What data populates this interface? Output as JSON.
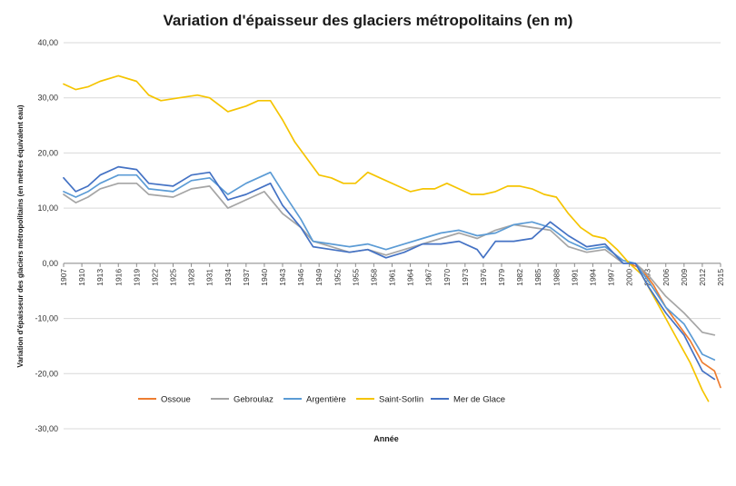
{
  "chart_data": {
    "type": "line",
    "title": "Variation d'épaisseur des glaciers métropolitains (en m)",
    "xlabel": "Année",
    "ylabel": "Variation d'épaisseur des glaciers métropolitains (en mètres équivalent eau)",
    "ylim": [
      -30,
      40
    ],
    "y_ticks": [
      40,
      30,
      20,
      10,
      0,
      -10,
      -20,
      -30
    ],
    "y_tick_labels": [
      "40,00",
      "30,00",
      "20,00",
      "10,00",
      "0,00",
      "-10,00",
      "-20,00",
      "-30,00"
    ],
    "x_range": [
      1907,
      2015
    ],
    "x_ticks": [
      1907,
      1910,
      1913,
      1916,
      1919,
      1922,
      1925,
      1928,
      1931,
      1934,
      1937,
      1940,
      1943,
      1946,
      1949,
      1952,
      1955,
      1958,
      1961,
      1964,
      1967,
      1970,
      1973,
      1976,
      1979,
      1982,
      1985,
      1988,
      1991,
      1994,
      1997,
      2000,
      2003,
      2006,
      2009,
      2012,
      2015
    ],
    "grid": true,
    "legend_position": "bottom-left",
    "series": [
      {
        "name": "Ossoue",
        "color": "#ED7D31",
        "x": [
          2000,
          2002,
          2004,
          2006,
          2008,
          2010,
          2012,
          2014,
          2015
        ],
        "y": [
          0,
          -1,
          -4,
          -8,
          -11,
          -14,
          -18,
          -19.5,
          -22.5
        ]
      },
      {
        "name": "Gebroulaz",
        "color": "#A5A5A5",
        "x": [
          1907,
          1909,
          1911,
          1913,
          1916,
          1919,
          1921,
          1925,
          1928,
          1931,
          1934,
          1937,
          1940,
          1943,
          1946,
          1948,
          1951,
          1954,
          1957,
          1960,
          1963,
          1966,
          1969,
          1972,
          1975,
          1978,
          1981,
          1984,
          1987,
          1990,
          1993,
          1996,
          1999,
          2001,
          2003,
          2006,
          2009,
          2012,
          2014
        ],
        "y": [
          12.5,
          11,
          12,
          13.5,
          14.5,
          14.5,
          12.5,
          12,
          13.5,
          14,
          10,
          11.5,
          13,
          9,
          6.5,
          4,
          3,
          2,
          2.5,
          1.5,
          2.5,
          3.5,
          4.5,
          5.5,
          4.5,
          6,
          7,
          6.5,
          6,
          3,
          2,
          2.5,
          0,
          0,
          -2,
          -6,
          -9,
          -12.5,
          -13
        ]
      },
      {
        "name": "Argentière",
        "color": "#5B9BD5",
        "x": [
          1907,
          1909,
          1911,
          1913,
          1916,
          1919,
          1921,
          1925,
          1928,
          1931,
          1934,
          1937,
          1941,
          1943,
          1946,
          1948,
          1951,
          1954,
          1957,
          1960,
          1963,
          1966,
          1969,
          1972,
          1975,
          1978,
          1981,
          1984,
          1987,
          1990,
          1993,
          1996,
          1999,
          2001,
          2003,
          2006,
          2009,
          2012,
          2014
        ],
        "y": [
          13,
          12,
          13,
          14.5,
          16,
          16,
          13.5,
          13,
          15,
          15.5,
          12.5,
          14.5,
          16.5,
          13,
          8,
          4,
          3.5,
          3,
          3.5,
          2.5,
          3.5,
          4.5,
          5.5,
          6,
          5,
          5.5,
          7,
          7.5,
          6.5,
          4,
          2.5,
          3,
          0.5,
          0,
          -3,
          -8,
          -11,
          -16.5,
          -17.5
        ]
      },
      {
        "name": "Saint-Sorlin",
        "color": "#F5C400",
        "x": [
          1907,
          1909,
          1911,
          1913,
          1916,
          1919,
          1921,
          1923,
          1926,
          1929,
          1931,
          1934,
          1937,
          1939,
          1941,
          1943,
          1945,
          1947,
          1949,
          1951,
          1953,
          1955,
          1957,
          1959,
          1962,
          1964,
          1966,
          1968,
          1970,
          1972,
          1974,
          1976,
          1978,
          1980,
          1982,
          1984,
          1986,
          1988,
          1990,
          1992,
          1994,
          1996,
          1998,
          2000,
          2002,
          2004,
          2006,
          2008,
          2010,
          2012,
          2013
        ],
        "y": [
          32.5,
          31.5,
          32,
          33,
          34,
          33,
          30.5,
          29.5,
          30,
          30.5,
          30,
          27.5,
          28.5,
          29.5,
          29.5,
          26,
          22,
          19,
          16,
          15.5,
          14.5,
          14.5,
          16.5,
          15.5,
          14,
          13,
          13.5,
          13.5,
          14.5,
          13.5,
          12.5,
          12.5,
          13,
          14,
          14,
          13.5,
          12.5,
          12,
          9,
          6.5,
          5,
          4.5,
          2.5,
          0,
          -2,
          -6,
          -10,
          -14,
          -18,
          -23,
          -25
        ]
      },
      {
        "name": "Mer de Glace",
        "color": "#4472C4",
        "x": [
          1907,
          1909,
          1911,
          1913,
          1916,
          1919,
          1921,
          1925,
          1928,
          1931,
          1934,
          1937,
          1941,
          1943,
          1946,
          1948,
          1951,
          1954,
          1957,
          1960,
          1963,
          1966,
          1969,
          1972,
          1975,
          1976,
          1978,
          1981,
          1984,
          1987,
          1990,
          1993,
          1996,
          1999,
          2001,
          2003,
          2006,
          2009,
          2012,
          2014
        ],
        "y": [
          15.5,
          13,
          14,
          16,
          17.5,
          17,
          14.5,
          14,
          16,
          16.5,
          11.5,
          12.5,
          14.5,
          10.5,
          6.5,
          3,
          2.5,
          2,
          2.5,
          1,
          2,
          3.5,
          3.5,
          4,
          2.5,
          1,
          4,
          4,
          4.5,
          7.5,
          5,
          3,
          3.5,
          0,
          0,
          -4,
          -9,
          -13,
          -19.5,
          -21
        ]
      }
    ]
  }
}
